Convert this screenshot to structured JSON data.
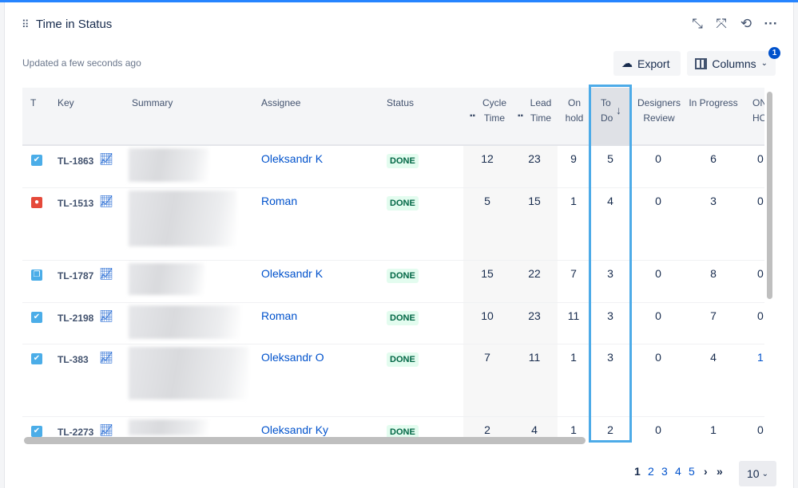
{
  "header": {
    "title": "Time in Status",
    "updated": "Updated a few seconds ago",
    "export_label": "Export",
    "columns_label": "Columns",
    "columns_badge": "1"
  },
  "icons": {
    "grip": "drag-handle-icon",
    "minimize": "minimize-icon",
    "collapse": "collapse-icon",
    "refresh": "refresh-icon",
    "more": "more-icon"
  },
  "columns": [
    "T",
    "Key",
    "Summary",
    "Assignee",
    "Status",
    "Cycle Time",
    "Lead Time",
    "On hold",
    "To Do",
    "Designers Review",
    "In Progress",
    "ON HOLD"
  ],
  "sort": {
    "column": "To Do",
    "direction": "descending"
  },
  "rows": [
    {
      "type": "story",
      "key": "TL-1863",
      "assignee": "Oleksandr K",
      "status": "DONE",
      "cycle": "12",
      "lead": "23",
      "onhold": "9",
      "todo": "5",
      "designers": "0",
      "inprogress": "6",
      "onhold2": "0"
    },
    {
      "type": "bug",
      "key": "TL-1513",
      "assignee": "Roman",
      "status": "DONE",
      "cycle": "5",
      "lead": "15",
      "onhold": "1",
      "todo": "4",
      "designers": "0",
      "inprogress": "3",
      "onhold2": "0"
    },
    {
      "type": "subtask",
      "key": "TL-1787",
      "assignee": "Oleksandr K",
      "status": "DONE",
      "cycle": "15",
      "lead": "22",
      "onhold": "7",
      "todo": "3",
      "designers": "0",
      "inprogress": "8",
      "onhold2": "0"
    },
    {
      "type": "story",
      "key": "TL-2198",
      "assignee": "Roman",
      "status": "DONE",
      "cycle": "10",
      "lead": "23",
      "onhold": "11",
      "todo": "3",
      "designers": "0",
      "inprogress": "7",
      "onhold2": "0"
    },
    {
      "type": "story",
      "key": "TL-383",
      "assignee": "Oleksandr O",
      "status": "DONE",
      "cycle": "7",
      "lead": "11",
      "onhold": "1",
      "todo": "3",
      "designers": "0",
      "inprogress": "4",
      "onhold2": "1"
    },
    {
      "type": "story",
      "key": "TL-2273",
      "assignee": "Oleksandr Ky",
      "status": "DONE",
      "cycle": "2",
      "lead": "4",
      "onhold": "1",
      "todo": "2",
      "designers": "0",
      "inprogress": "1",
      "onhold2": "0"
    }
  ],
  "pagination": {
    "current": "1",
    "pages": [
      "2",
      "3",
      "4",
      "5"
    ],
    "next": "›",
    "last": "»",
    "page_size": "10"
  },
  "colors": {
    "accent": "#2684ff",
    "link": "#0052cc",
    "done_bg": "#e3fcef",
    "done_text": "#006644",
    "highlight": "#4dabe8"
  }
}
